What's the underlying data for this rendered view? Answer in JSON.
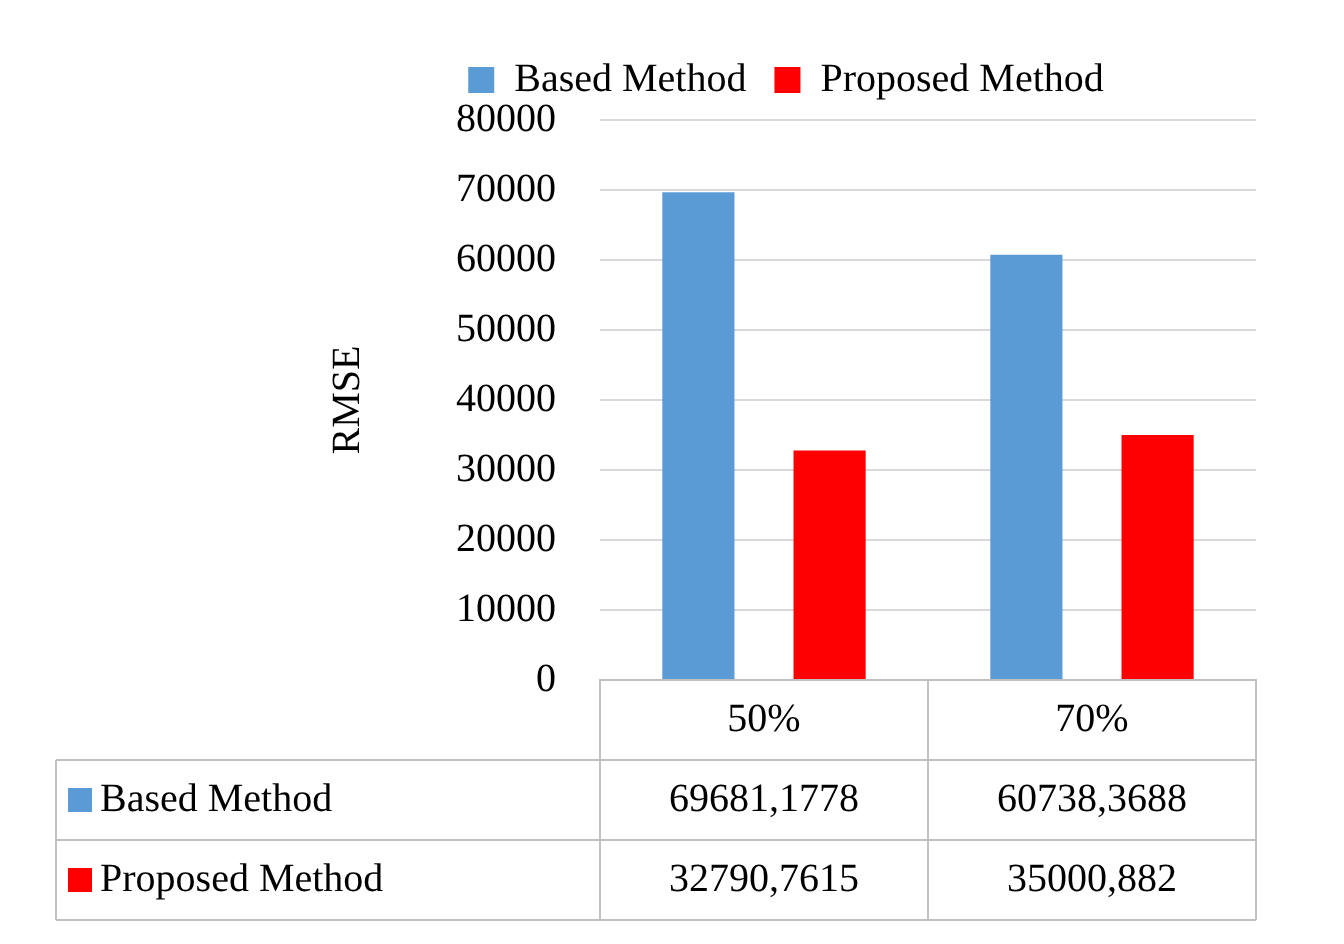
{
  "chart_data": {
    "type": "bar",
    "ylabel": "RMSE",
    "categories": [
      "50%",
      "70%"
    ],
    "series": [
      {
        "name": "Based Method",
        "color": "#5b9bd5",
        "values": [
          69681.1778,
          60738.3688
        ],
        "value_labels": [
          "69681,1778",
          "60738,3688"
        ]
      },
      {
        "name": "Proposed Method",
        "color": "#ff0000",
        "values": [
          32790.7615,
          35000.882
        ],
        "value_labels": [
          "32790,7615",
          "35000,882"
        ]
      }
    ],
    "ylim": [
      0,
      80000
    ],
    "yticks": [
      0,
      10000,
      20000,
      30000,
      40000,
      50000,
      60000,
      70000,
      80000
    ],
    "grid": "y",
    "legend": "top"
  }
}
